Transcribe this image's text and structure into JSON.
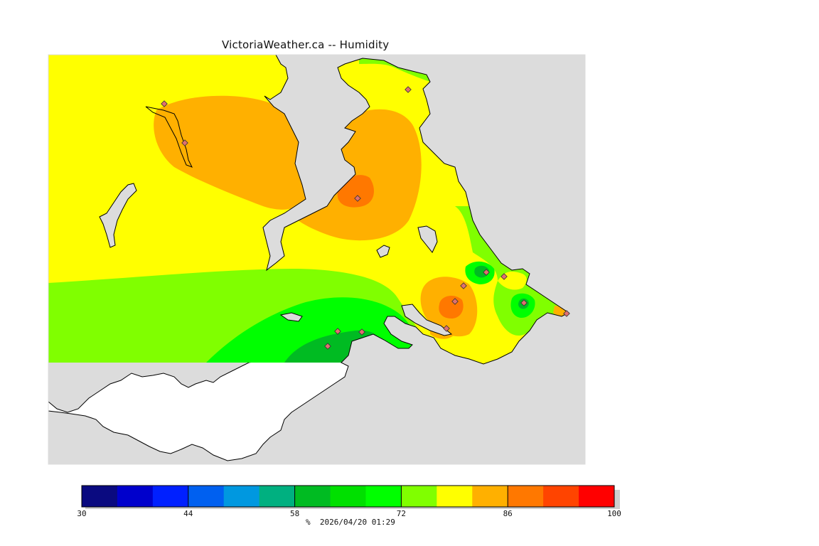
{
  "title": "VictoriaWeather.ca -- Humidity",
  "colors": {
    "background": "#ffffff",
    "water": "#dcdcdc",
    "unmapped_land": "#ffffff",
    "coastline": "#000000",
    "station_marker": "#e07070"
  },
  "colorbar": {
    "min": 30,
    "max": 100,
    "step": 5,
    "tick_labels": [
      "30",
      "44",
      "58",
      "72",
      "86",
      "100"
    ],
    "tick_values": [
      30,
      44,
      58,
      72,
      86,
      100
    ],
    "colors": [
      "#0a0a80",
      "#0000cc",
      "#0020ff",
      "#0060f0",
      "#0098e0",
      "#00b080",
      "#00bb22",
      "#00e000",
      "#00ff00",
      "#80ff00",
      "#ffff00",
      "#ffb000",
      "#ff7800",
      "#ff4400",
      "#ff0000"
    ]
  },
  "footer": {
    "units": "%",
    "timestamp": "2026/04/20 01:29"
  },
  "stations": [
    {
      "id": 1,
      "humidity_class": 82
    },
    {
      "id": 2,
      "humidity_class": 82
    },
    {
      "id": 3,
      "humidity_class": 77
    },
    {
      "id": 4,
      "humidity_class": 86
    },
    {
      "id": 5,
      "humidity_class": 62
    },
    {
      "id": 6,
      "humidity_class": 77
    },
    {
      "id": 7,
      "humidity_class": 82
    },
    {
      "id": 8,
      "humidity_class": 86
    },
    {
      "id": 9,
      "humidity_class": 62
    },
    {
      "id": 10,
      "humidity_class": 62
    },
    {
      "id": 11,
      "humidity_class": 62
    },
    {
      "id": 12,
      "humidity_class": 62
    },
    {
      "id": 13,
      "humidity_class": 77
    },
    {
      "id": 14,
      "humidity_class": 82
    }
  ]
}
